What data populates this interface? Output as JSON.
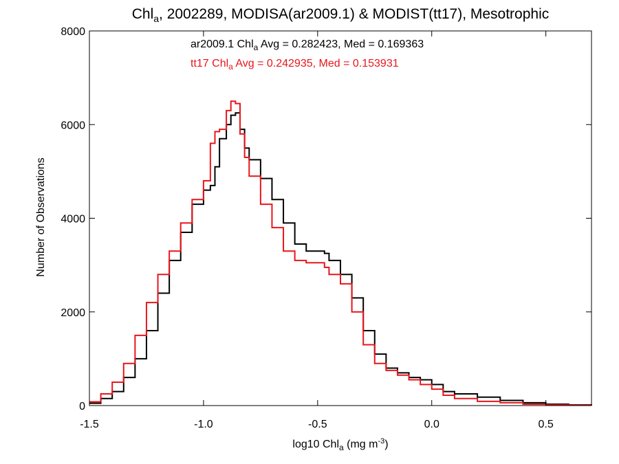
{
  "chart_data": {
    "type": "line",
    "title": {
      "prefix": "Chl",
      "sub": "a",
      "suffix": ", 2002289, MODISA(ar2009.1) & MODIST(tt17), Mesotrophic"
    },
    "xlabel": {
      "prefix": "log10 Chl",
      "sub": "a",
      "mid": " (mg m",
      "sup": "-3",
      "suffix": ")"
    },
    "ylabel": "Number of Observations",
    "xlim": [
      -1.5,
      0.7
    ],
    "ylim": [
      0,
      8000
    ],
    "xticks": [
      -1.5,
      -1.0,
      -0.5,
      0.0,
      0.5
    ],
    "xtick_labels": [
      "-1.5",
      "-1.0",
      "-0.5",
      "0.0",
      "0.5"
    ],
    "yticks": [
      0,
      2000,
      4000,
      6000,
      8000
    ],
    "ytick_labels": [
      "0",
      "2000",
      "4000",
      "6000",
      "8000"
    ],
    "grid": false,
    "annotations": [
      {
        "color": "#000000",
        "prefix": "ar2009.1 Chl",
        "sub": "a",
        "suffix": " Avg = 0.282423, Med = 0.169363"
      },
      {
        "color": "#e8151b",
        "prefix": "tt17 Chl",
        "sub": "a",
        "suffix": " Avg = 0.242935, Med = 0.153931"
      }
    ],
    "series": [
      {
        "color": "#000000",
        "step": true,
        "x": [
          -1.5,
          -1.45,
          -1.4,
          -1.35,
          -1.3,
          -1.25,
          -1.2,
          -1.15,
          -1.1,
          -1.05,
          -1.0,
          -0.97,
          -0.95,
          -0.93,
          -0.9,
          -0.88,
          -0.86,
          -0.84,
          -0.82,
          -0.8,
          -0.75,
          -0.7,
          -0.65,
          -0.6,
          -0.55,
          -0.5,
          -0.47,
          -0.45,
          -0.4,
          -0.35,
          -0.3,
          -0.25,
          -0.2,
          -0.15,
          -0.1,
          -0.05,
          0.0,
          0.05,
          0.1,
          0.2,
          0.3,
          0.4,
          0.5,
          0.6,
          0.7
        ],
        "y": [
          50,
          150,
          300,
          600,
          1000,
          1600,
          2400,
          3100,
          3700,
          4300,
          4600,
          4700,
          5100,
          5700,
          6000,
          6200,
          6250,
          5900,
          5500,
          5250,
          4850,
          4400,
          3900,
          3450,
          3300,
          3300,
          3250,
          3100,
          2800,
          2300,
          1600,
          1100,
          800,
          700,
          600,
          550,
          450,
          300,
          250,
          180,
          110,
          60,
          30,
          15,
          10
        ]
      },
      {
        "color": "#e8151b",
        "step": true,
        "x": [
          -1.5,
          -1.45,
          -1.4,
          -1.35,
          -1.3,
          -1.25,
          -1.2,
          -1.15,
          -1.1,
          -1.05,
          -1.0,
          -0.97,
          -0.95,
          -0.93,
          -0.9,
          -0.88,
          -0.86,
          -0.84,
          -0.82,
          -0.8,
          -0.75,
          -0.7,
          -0.65,
          -0.6,
          -0.55,
          -0.5,
          -0.47,
          -0.45,
          -0.4,
          -0.35,
          -0.3,
          -0.25,
          -0.2,
          -0.15,
          -0.1,
          -0.05,
          0.0,
          0.05,
          0.1,
          0.2,
          0.3,
          0.4,
          0.5,
          0.6,
          0.7
        ],
        "y": [
          80,
          250,
          500,
          900,
          1500,
          2200,
          2800,
          3300,
          3900,
          4400,
          4800,
          5600,
          5850,
          5900,
          6300,
          6500,
          6450,
          5800,
          5300,
          4900,
          4300,
          3800,
          3300,
          3100,
          3050,
          3050,
          2950,
          2800,
          2600,
          2000,
          1300,
          900,
          750,
          650,
          550,
          450,
          350,
          220,
          150,
          90,
          60,
          30,
          15,
          8,
          5
        ]
      }
    ]
  }
}
